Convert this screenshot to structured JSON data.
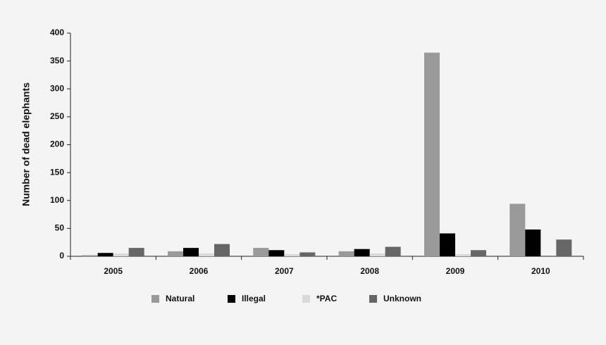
{
  "chart_data": {
    "type": "bar",
    "y_label": "Number of dead elephants",
    "categories": [
      "2005",
      "2006",
      "2007",
      "2008",
      "2009",
      "2010"
    ],
    "series": [
      {
        "name": "Natural",
        "color": "#999999",
        "values": [
          2,
          9,
          15,
          9,
          365,
          94
        ]
      },
      {
        "name": "Illegal",
        "color": "#000000",
        "values": [
          6,
          15,
          11,
          13,
          41,
          48
        ]
      },
      {
        "name": "*PAC",
        "color": "#d9d9d9",
        "values": [
          5,
          5,
          4,
          5,
          4,
          0
        ]
      },
      {
        "name": "Unknown",
        "color": "#666666",
        "values": [
          15,
          22,
          7,
          17,
          11,
          30
        ]
      }
    ],
    "ylim": [
      0,
      400
    ],
    "yticks": [
      0,
      50,
      100,
      150,
      200,
      250,
      300,
      350,
      400
    ],
    "grid": false
  }
}
